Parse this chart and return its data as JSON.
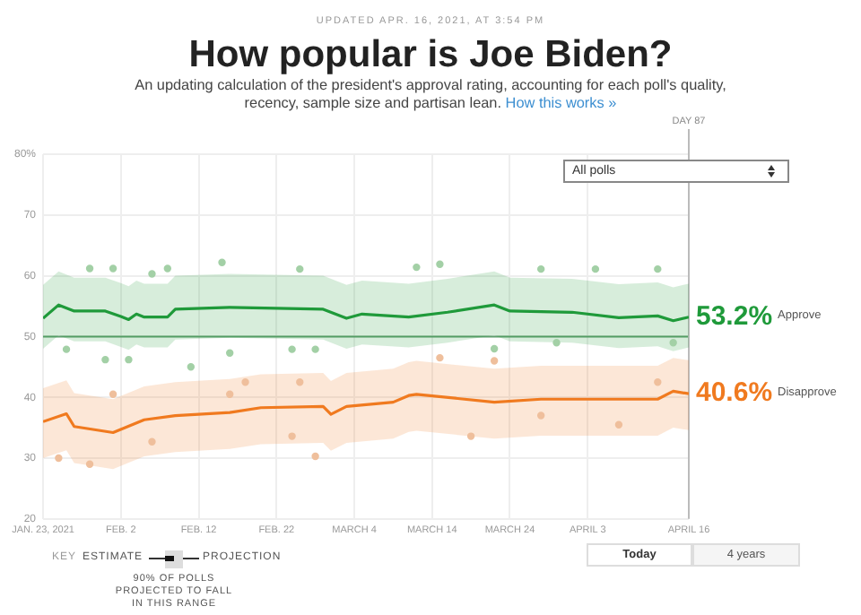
{
  "chart_data": {
    "type": "line",
    "title": "How popular is Joe Biden?",
    "subtitle": "An updating calculation of the president's approval rating, accounting for each poll's quality, recency, sample size and partisan lean.",
    "annotations": [
      "UPDATED APR. 16, 2021, AT 3:54 PM",
      "How this works »",
      "All polls",
      "KEY",
      "ESTIMATE",
      "PROJECTION",
      "90% OF POLLS PROJECTED TO FALL IN THIS RANGE",
      "Today",
      "4 years"
    ],
    "xlim": [
      "2021-01-23",
      "2021-04-16"
    ],
    "xticks": [
      {
        "value": "2021-01-23",
        "label": "JAN. 23, 2021"
      },
      {
        "value": "2021-02-02",
        "label": "FEB. 2"
      },
      {
        "value": "2021-02-12",
        "label": "FEB. 12"
      },
      {
        "value": "2021-02-22",
        "label": "FEB. 22"
      },
      {
        "value": "2021-03-04",
        "label": "MARCH 4"
      },
      {
        "value": "2021-03-14",
        "label": "MARCH 14"
      },
      {
        "value": "2021-03-24",
        "label": "MARCH 24"
      },
      {
        "value": "2021-04-03",
        "label": "APRIL 3"
      },
      {
        "value": "2021-04-16",
        "label": "APRIL 16"
      }
    ],
    "ylim": [
      20,
      80
    ],
    "yticks": [
      20,
      30,
      40,
      50,
      60,
      70,
      {
        "value": 80,
        "label": "80%"
      }
    ],
    "grid": true,
    "legend": false,
    "marker": "none",
    "line_style": "solid",
    "ref_lines": [
      {
        "axis": "y",
        "value": 50,
        "color": "#5f9e6e"
      },
      {
        "axis": "x",
        "value": "2021-04-16",
        "label": "DAY 87",
        "color": "#bbbbbb"
      }
    ],
    "series": [
      {
        "type": "scatter",
        "marker": "circle",
        "color": "#a3d0a6",
        "x": [
          "2021-01-29",
          "2021-02-01",
          "2021-02-06",
          "2021-02-08",
          "2021-02-15",
          "2021-02-25",
          "2021-01-26",
          "2021-01-31",
          "2021-02-03",
          "2021-02-16",
          "2021-02-11",
          "2021-02-24",
          "2021-02-27",
          "2021-03-12",
          "2021-03-15",
          "2021-03-28",
          "2021-04-04",
          "2021-04-12",
          "2021-03-22",
          "2021-03-30",
          "2021-04-14"
        ],
        "values": [
          61.2,
          61.2,
          60.3,
          61.2,
          62.2,
          61.1,
          47.9,
          46.2,
          46.2,
          47.3,
          45.0,
          47.9,
          47.9,
          61.4,
          61.9,
          61.1,
          61.1,
          61.1,
          48.0,
          49.0,
          49.0
        ]
      },
      {
        "type": "scatter",
        "marker": "circle",
        "color": "#efbf9c",
        "x": [
          "2021-01-29",
          "2021-02-27",
          "2021-01-25",
          "2021-02-01",
          "2021-02-16",
          "2021-02-18",
          "2021-02-25",
          "2021-02-06",
          "2021-02-24",
          "2021-03-19",
          "2021-03-22",
          "2021-03-15",
          "2021-04-12",
          "2021-04-07",
          "2021-03-28"
        ],
        "values": [
          29.0,
          30.3,
          30.0,
          40.5,
          40.5,
          42.5,
          42.5,
          32.7,
          33.6,
          33.6,
          46.0,
          46.5,
          42.5,
          35.5,
          37.0
        ]
      },
      {
        "name": "Approve",
        "color": "#1f9a3a",
        "x": [
          "2021-01-23",
          "2021-01-25",
          "2021-01-27",
          "2021-01-31",
          "2021-02-02",
          "2021-02-03",
          "2021-02-04",
          "2021-02-05",
          "2021-02-08",
          "2021-02-09",
          "2021-02-16",
          "2021-02-28",
          "2021-03-03",
          "2021-03-05",
          "2021-03-11",
          "2021-03-16",
          "2021-03-22",
          "2021-03-24",
          "2021-04-01",
          "2021-04-07",
          "2021-04-12",
          "2021-04-14",
          "2021-04-16"
        ],
        "values": [
          53.0,
          55.2,
          54.2,
          54.2,
          53.3,
          52.8,
          53.7,
          53.2,
          53.2,
          54.5,
          54.8,
          54.5,
          53.0,
          53.7,
          53.2,
          54.0,
          55.2,
          54.2,
          54.0,
          53.1,
          53.4,
          52.6,
          53.2
        ],
        "upper": [
          58.5,
          60.7,
          59.7,
          59.7,
          58.8,
          58.3,
          59.2,
          58.7,
          58.7,
          60.0,
          60.3,
          60.0,
          58.5,
          59.2,
          58.7,
          59.5,
          60.7,
          59.7,
          59.5,
          58.6,
          58.9,
          58.1,
          58.7
        ],
        "lower": [
          48.0,
          50.2,
          49.2,
          49.2,
          48.3,
          47.8,
          48.7,
          48.2,
          48.2,
          49.5,
          49.8,
          49.5,
          48.0,
          48.7,
          48.2,
          49.0,
          50.2,
          49.2,
          49.0,
          48.1,
          48.4,
          47.6,
          48.2
        ],
        "value_labels": [
          null,
          null,
          null,
          null,
          null,
          null,
          null,
          null,
          null,
          null,
          null,
          null,
          null,
          null,
          null,
          null,
          null,
          null,
          null,
          null,
          null,
          null,
          "53.2%"
        ]
      },
      {
        "name": "Disapprove",
        "color": "#f07a1f",
        "x": [
          "2021-01-23",
          "2021-01-26",
          "2021-01-27",
          "2021-02-01",
          "2021-02-05",
          "2021-02-09",
          "2021-02-16",
          "2021-02-20",
          "2021-02-28",
          "2021-03-01",
          "2021-03-03",
          "2021-03-09",
          "2021-03-11",
          "2021-03-12",
          "2021-03-22",
          "2021-03-28",
          "2021-04-12",
          "2021-04-14",
          "2021-04-16"
        ],
        "values": [
          36.0,
          37.3,
          35.2,
          34.2,
          36.3,
          37.0,
          37.5,
          38.3,
          38.5,
          37.2,
          38.5,
          39.2,
          40.3,
          40.5,
          39.2,
          39.7,
          39.7,
          41.0,
          40.6
        ],
        "upper": [
          41.5,
          42.8,
          40.7,
          39.7,
          41.8,
          42.5,
          43.0,
          43.8,
          44.0,
          42.7,
          44.0,
          44.7,
          45.8,
          46.0,
          44.7,
          45.2,
          45.2,
          46.5,
          46.1
        ],
        "lower": [
          30.0,
          31.3,
          29.2,
          28.2,
          30.3,
          31.0,
          31.5,
          32.3,
          32.5,
          31.2,
          32.5,
          33.2,
          34.3,
          34.5,
          33.2,
          33.7,
          33.7,
          35.0,
          34.6
        ],
        "value_labels": [
          null,
          null,
          null,
          null,
          null,
          null,
          null,
          null,
          null,
          null,
          null,
          null,
          null,
          null,
          null,
          null,
          null,
          null,
          "40.6%"
        ]
      }
    ]
  }
}
